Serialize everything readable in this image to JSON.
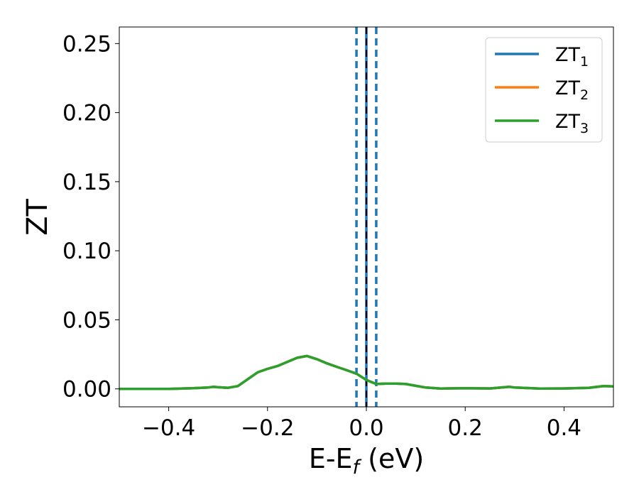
{
  "chart_data": {
    "type": "line",
    "title": "",
    "xlabel": "E-E",
    "xlabel_sub": "f",
    "xlabel_unit": " (eV)",
    "ylabel": "ZT",
    "xlim": [
      -0.5,
      0.5
    ],
    "ylim": [
      -0.013,
      0.262
    ],
    "xticks": [
      -0.4,
      -0.2,
      0.0,
      0.2,
      0.4
    ],
    "xtick_labels": [
      "−0.4",
      "−0.2",
      "0.0",
      "0.2",
      "0.4"
    ],
    "yticks": [
      0.0,
      0.05,
      0.1,
      0.15,
      0.2,
      0.25
    ],
    "ytick_labels": [
      "0.00",
      "0.05",
      "0.10",
      "0.15",
      "0.20",
      "0.25"
    ],
    "grid": false,
    "legend_position": "top-right",
    "vlines": [
      {
        "x": -0.02,
        "style": "dashed",
        "color": "#1f77b4"
      },
      {
        "x": 0.0,
        "style": "solid",
        "color": "#1f77b4"
      },
      {
        "x": 0.0,
        "style": "dashed",
        "color": "#000000"
      },
      {
        "x": 0.02,
        "style": "dashed",
        "color": "#1f77b4"
      }
    ],
    "series": [
      {
        "name": "ZT",
        "sub": "1",
        "color": "#1f77b4",
        "x": [
          -0.5,
          -0.45,
          -0.4,
          -0.35,
          -0.32,
          -0.31,
          -0.3,
          -0.28,
          -0.26,
          -0.24,
          -0.22,
          -0.2,
          -0.18,
          -0.16,
          -0.14,
          -0.12,
          -0.1,
          -0.08,
          -0.06,
          -0.04,
          -0.02,
          0.0,
          0.02,
          0.04,
          0.06,
          0.08,
          0.1,
          0.12,
          0.15,
          0.2,
          0.25,
          0.29,
          0.3,
          0.35,
          0.4,
          0.45,
          0.48,
          0.5
        ],
        "y": [
          0.0,
          0.0,
          0.0,
          0.0005,
          0.001,
          0.0015,
          0.0012,
          0.0008,
          0.002,
          0.007,
          0.012,
          0.0145,
          0.0165,
          0.0195,
          0.0225,
          0.0238,
          0.0215,
          0.0185,
          0.016,
          0.0135,
          0.011,
          0.0065,
          0.0035,
          0.0038,
          0.0038,
          0.0035,
          0.0022,
          0.001,
          0.0002,
          0.0005,
          0.0003,
          0.0015,
          0.001,
          0.0002,
          0.0003,
          0.0008,
          0.002,
          0.0018
        ]
      },
      {
        "name": "ZT",
        "sub": "2",
        "color": "#ff7f0e",
        "x": [
          -0.5,
          -0.45,
          -0.4,
          -0.35,
          -0.32,
          -0.31,
          -0.3,
          -0.28,
          -0.26,
          -0.24,
          -0.22,
          -0.2,
          -0.18,
          -0.16,
          -0.14,
          -0.12,
          -0.1,
          -0.08,
          -0.06,
          -0.04,
          -0.02,
          0.0,
          0.02,
          0.04,
          0.06,
          0.08,
          0.1,
          0.12,
          0.15,
          0.2,
          0.25,
          0.29,
          0.3,
          0.35,
          0.4,
          0.45,
          0.48,
          0.5
        ],
        "y": [
          0.0,
          0.0,
          0.0,
          0.0005,
          0.001,
          0.0015,
          0.0012,
          0.0008,
          0.002,
          0.007,
          0.012,
          0.0145,
          0.0165,
          0.0195,
          0.0225,
          0.0238,
          0.0215,
          0.0185,
          0.016,
          0.0135,
          0.011,
          0.0065,
          0.0035,
          0.0038,
          0.0038,
          0.0035,
          0.0022,
          0.001,
          0.0002,
          0.0005,
          0.0003,
          0.0015,
          0.001,
          0.0002,
          0.0003,
          0.0008,
          0.002,
          0.0018
        ]
      },
      {
        "name": "ZT",
        "sub": "3",
        "color": "#2ca02c",
        "x": [
          -0.5,
          -0.45,
          -0.4,
          -0.35,
          -0.32,
          -0.31,
          -0.3,
          -0.28,
          -0.26,
          -0.24,
          -0.22,
          -0.2,
          -0.18,
          -0.16,
          -0.14,
          -0.12,
          -0.1,
          -0.08,
          -0.06,
          -0.04,
          -0.02,
          0.0,
          0.02,
          0.04,
          0.06,
          0.08,
          0.1,
          0.12,
          0.15,
          0.2,
          0.25,
          0.29,
          0.3,
          0.35,
          0.4,
          0.45,
          0.48,
          0.5
        ],
        "y": [
          0.0,
          0.0,
          0.0,
          0.0005,
          0.001,
          0.0015,
          0.0012,
          0.0008,
          0.002,
          0.007,
          0.012,
          0.0145,
          0.0165,
          0.0195,
          0.0225,
          0.0238,
          0.0215,
          0.0185,
          0.016,
          0.0135,
          0.011,
          0.0065,
          0.0035,
          0.0038,
          0.0038,
          0.0035,
          0.0022,
          0.001,
          0.0002,
          0.0005,
          0.0003,
          0.0015,
          0.001,
          0.0002,
          0.0003,
          0.0008,
          0.002,
          0.0018
        ]
      }
    ]
  }
}
